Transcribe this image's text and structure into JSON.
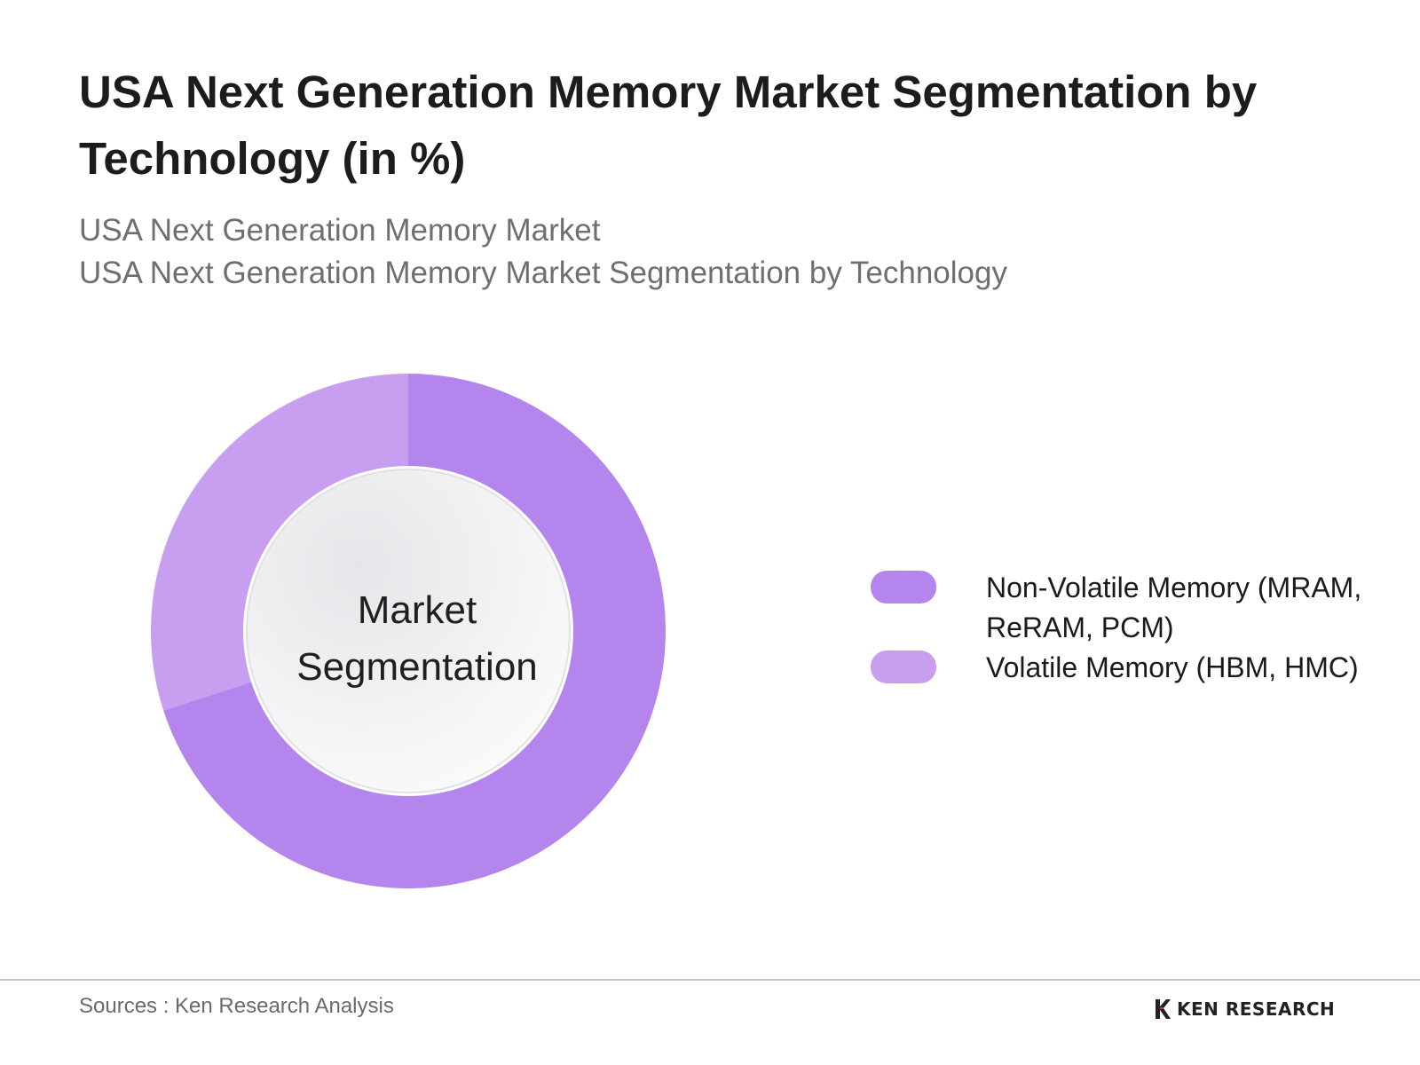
{
  "title": "USA Next Generation Memory Market Segmentation by Technology (in %)",
  "subtitles": [
    "USA Next Generation Memory Market",
    "USA Next Generation Memory Market Segmentation by Technology"
  ],
  "chart_data": {
    "type": "pie",
    "variant": "donut",
    "title": "USA Next Generation Memory Market Segmentation by Technology (in %)",
    "center_label": "Market Segmentation",
    "legend_position": "right",
    "slices": [
      {
        "label": "Non-Volatile Memory (MRAM, ReRAM, PCM)",
        "value": 70,
        "color": "#b485ec"
      },
      {
        "label": "Volatile Memory (HBM, HMC)",
        "value": 30,
        "color": "#c89ff0"
      }
    ]
  },
  "footer": {
    "source": "Sources : Ken Research Analysis",
    "logo_text": "KEN RESEARCH"
  }
}
